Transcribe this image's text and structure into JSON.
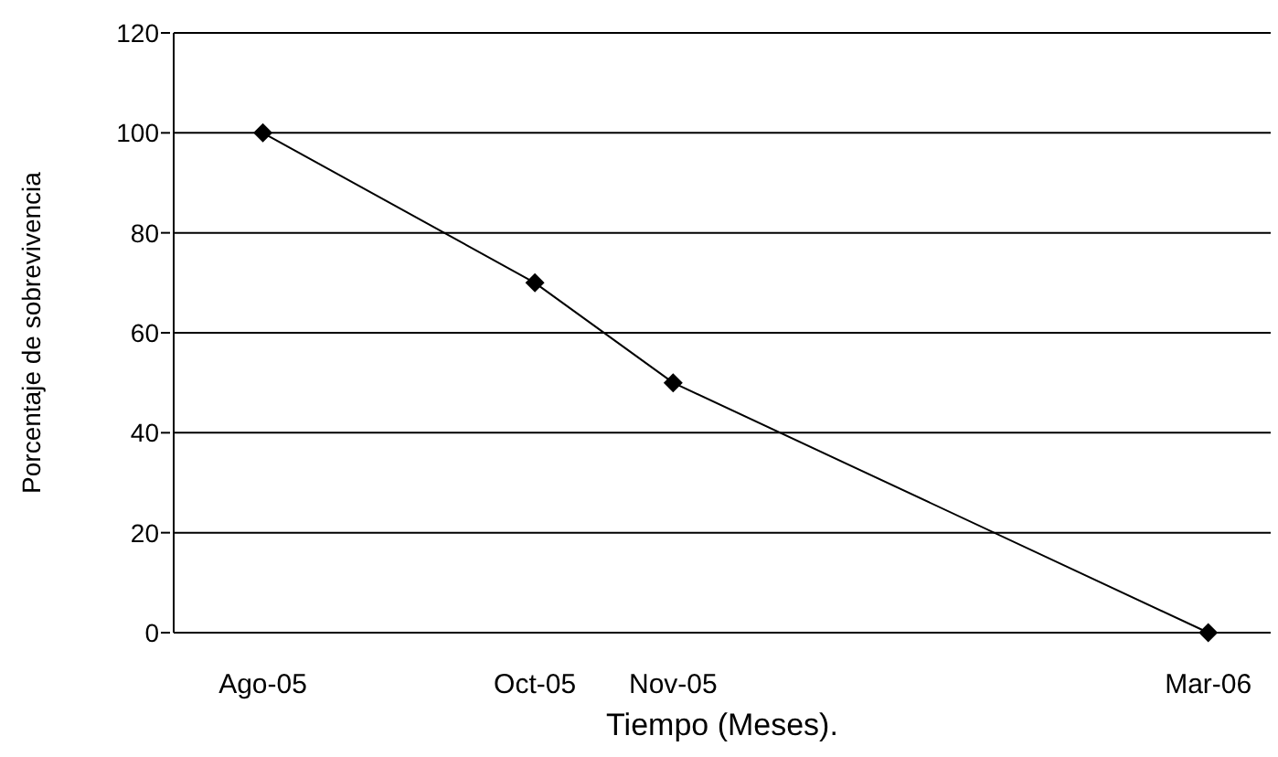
{
  "chart_data": {
    "type": "line",
    "xlabel": "Tiempo (Meses).",
    "ylabel": "Porcentaje de sobrevivencia",
    "x": [
      "2005-08-01",
      "2005-10-01",
      "2005-11-01",
      "2006-03-01"
    ],
    "series": [
      {
        "color": "#000000",
        "values": [
          100,
          70,
          50,
          0
        ]
      }
    ],
    "xlim": [
      "2005-07-12",
      "2006-03-15"
    ],
    "xticks": [
      {
        "value": "2005-08-01",
        "label": "Ago-05"
      },
      {
        "value": "2005-10-01",
        "label": "Oct-05"
      },
      {
        "value": "2005-11-01",
        "label": "Nov-05"
      },
      {
        "value": "2006-03-01",
        "label": "Mar-06"
      }
    ],
    "ylim": [
      0,
      120
    ],
    "yticks": [
      0,
      20,
      40,
      60,
      80,
      100,
      120
    ],
    "grid": "y",
    "marker": "diamond",
    "line_style": "solid"
  }
}
